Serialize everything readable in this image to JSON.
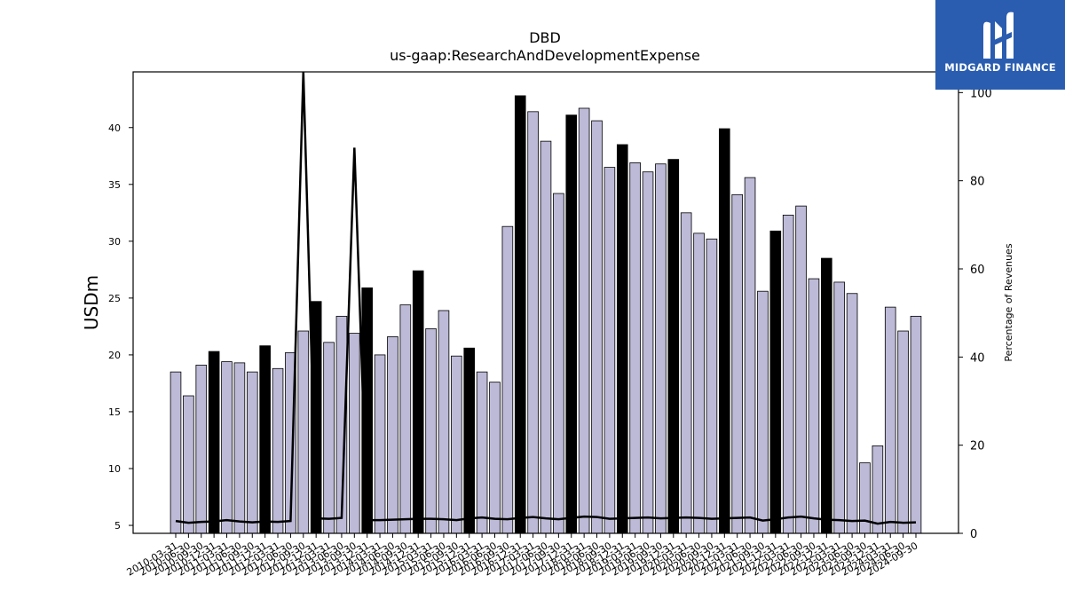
{
  "watermark": {
    "text": "MIDGARD FINANCE",
    "color": "#2a5db0"
  },
  "chart_data": {
    "type": "bar",
    "title": "DBD",
    "subtitle": "us-gaap:ResearchAndDevelopmentExpense",
    "ylabel": "USDm",
    "y2label": "Percentage of Revenues",
    "ylim": [
      4.3,
      44.9
    ],
    "y2lim": [
      0,
      104.7
    ],
    "yticks": [
      5,
      10,
      15,
      20,
      25,
      30,
      35,
      40
    ],
    "y2ticks": [
      0,
      20,
      40,
      60,
      80,
      100
    ],
    "colors": {
      "bar": "#bdbad8",
      "bar_highlight": "#000000",
      "line": "#000000"
    },
    "categories": [
      "2010-03-31",
      "2010-06-30",
      "2010-09-30",
      "2010-12-31",
      "2011-03-31",
      "2011-06-30",
      "2011-09-30",
      "2011-12-31",
      "2012-03-31",
      "2012-06-30",
      "2012-09-30",
      "2012-12-31",
      "2013-03-31",
      "2013-06-30",
      "2013-09-30",
      "2013-12-31",
      "2014-03-31",
      "2014-06-30",
      "2014-09-30",
      "2014-12-31",
      "2015-03-31",
      "2015-06-30",
      "2015-09-30",
      "2015-12-31",
      "2016-03-31",
      "2016-06-30",
      "2016-09-30",
      "2016-12-31",
      "2017-03-31",
      "2017-06-30",
      "2017-09-30",
      "2017-12-31",
      "2018-03-31",
      "2018-06-30",
      "2018-09-30",
      "2018-12-31",
      "2019-03-31",
      "2019-06-30",
      "2019-09-30",
      "2019-12-31",
      "2020-03-31",
      "2020-06-30",
      "2020-09-30",
      "2020-12-31",
      "2021-03-31",
      "2021-06-30",
      "2021-09-30",
      "2021-12-31",
      "2022-03-31",
      "2022-06-30",
      "2022-09-30",
      "2022-12-31",
      "2023-03-31",
      "2023-06-30",
      "2023-09-30",
      "2023-12-31",
      "2024-03-31",
      "2024-06-30",
      "2024-09-30"
    ],
    "xticklabels_shown": [
      "2010-03-31",
      "2010-06-30",
      "2010-09-30",
      "2010-12-31",
      "2011-03-31",
      "2011-06-30",
      "2011-09-30",
      "2011-12-31",
      "2012-03-31",
      "2012-06-30",
      "2012-09-30",
      "2012-12-31",
      "2013-03-31",
      "2013-06-30",
      "2013-09-30",
      "2013-12-31",
      "2014-03-31",
      "2014-06-30",
      "2014-09-30",
      "2014-12-31",
      "2015-03-31",
      "2015-06-30",
      "2015-09-30",
      "2015-12-31",
      "2016-03-31",
      "2016-06-30",
      "2016-09-30",
      "2016-12-31",
      "2017-03-31",
      "2017-06-30",
      "2017-09-30",
      "2017-12-31",
      "2018-03-31",
      "2018-06-30",
      "2018-09-30",
      "2018-12-31",
      "2019-03-31",
      "2019-06-30",
      "2019-09-30",
      "2019-12-31",
      "2020-03-31",
      "2020-06-30",
      "2020-09-30",
      "2020-12-31",
      "2021-03-31",
      "2021-06-30",
      "2021-09-30",
      "2021-12-31",
      "2022-03-31",
      "2022-06-30",
      "2022-09-30",
      "2022-12-31",
      "2023-03-31",
      "2023-06-30",
      "2023-09-30",
      "2023-12-31",
      "2024-03-31",
      "2024-06-30",
      "2024-09-30"
    ],
    "series": [
      {
        "axis": "left",
        "kind": "bar",
        "values": [
          18.5,
          16.4,
          19.1,
          20.3,
          19.4,
          19.3,
          18.5,
          20.8,
          18.8,
          20.2,
          22.1,
          24.7,
          21.1,
          23.4,
          21.9,
          25.9,
          20.0,
          21.6,
          24.4,
          27.4,
          22.3,
          23.9,
          19.9,
          20.6,
          18.5,
          17.6,
          31.3,
          42.8,
          41.4,
          38.8,
          34.2,
          41.1,
          41.7,
          40.6,
          36.5,
          38.5,
          36.9,
          36.1,
          36.8,
          37.2,
          32.5,
          30.7,
          30.2,
          39.9,
          34.1,
          35.6,
          25.6,
          30.9,
          32.3,
          33.1,
          26.7,
          28.5,
          26.4,
          25.4,
          10.5,
          12.0,
          24.2,
          22.1,
          23.4
        ],
        "highlight": [
          false,
          false,
          false,
          true,
          false,
          false,
          false,
          true,
          false,
          false,
          false,
          true,
          false,
          false,
          false,
          true,
          false,
          false,
          false,
          true,
          false,
          false,
          false,
          true,
          false,
          false,
          false,
          true,
          false,
          false,
          false,
          true,
          false,
          false,
          false,
          true,
          false,
          false,
          false,
          true,
          false,
          false,
          false,
          true,
          false,
          false,
          false,
          true,
          false,
          false,
          false,
          true,
          false,
          false,
          false,
          false,
          false,
          false,
          false
        ]
      },
      {
        "axis": "right",
        "kind": "line",
        "values": [
          2.8,
          2.4,
          2.6,
          2.7,
          3.0,
          2.7,
          2.5,
          2.7,
          2.6,
          2.8,
          104.7,
          3.4,
          3.3,
          3.5,
          87.5,
          3.0,
          3.0,
          3.1,
          3.2,
          3.3,
          3.3,
          3.2,
          3.0,
          3.4,
          3.6,
          3.3,
          3.2,
          3.5,
          3.7,
          3.4,
          3.2,
          3.5,
          3.8,
          3.7,
          3.3,
          3.4,
          3.5,
          3.6,
          3.4,
          3.5,
          3.6,
          3.5,
          3.3,
          3.4,
          3.5,
          3.6,
          2.9,
          3.2,
          3.6,
          3.8,
          3.4,
          3.1,
          3.0,
          2.8,
          2.9,
          2.2,
          2.6,
          2.4,
          2.5
        ]
      }
    ]
  }
}
